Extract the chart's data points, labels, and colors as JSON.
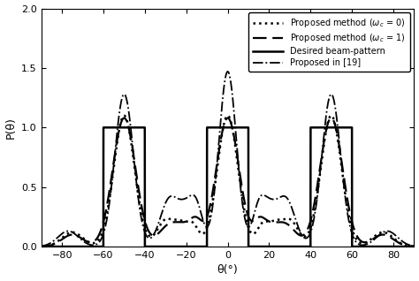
{
  "title": "",
  "xlabel": "θ(°)",
  "ylabel": "P(θ)",
  "xlim": [
    -90,
    90
  ],
  "ylim": [
    0,
    2
  ],
  "xticks": [
    -80,
    -60,
    -40,
    -20,
    0,
    20,
    40,
    60,
    80
  ],
  "yticks": [
    0,
    0.5,
    1,
    1.5,
    2
  ],
  "beam_centers": [
    -50,
    0,
    50
  ],
  "legend_labels": [
    "Proposed method ($\\omega_c$ = 0)",
    "Proposed method ($\\omega_c$ = 1)",
    "Desired beam-pattern",
    "Proposed in [19]"
  ],
  "background": "#ffffff"
}
